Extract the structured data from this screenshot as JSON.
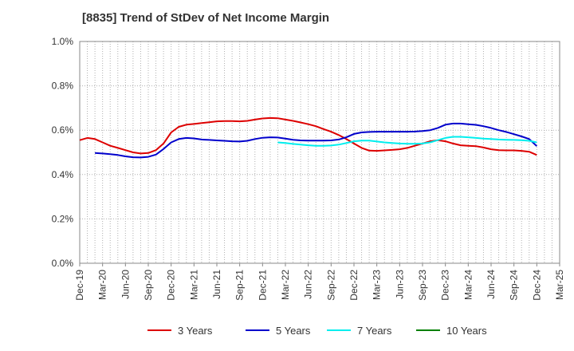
{
  "chart_data": {
    "type": "line",
    "title": "[8835]  Trend of StDev of Net Income Margin",
    "xlabel": "",
    "ylabel": "",
    "x_ticks": [
      "Dec-19",
      "Mar-20",
      "Jun-20",
      "Sep-20",
      "Dec-20",
      "Mar-21",
      "Jun-21",
      "Sep-21",
      "Dec-21",
      "Mar-22",
      "Jun-22",
      "Sep-22",
      "Dec-22",
      "Mar-23",
      "Jun-23",
      "Sep-23",
      "Dec-23",
      "Mar-24",
      "Jun-24",
      "Sep-24",
      "Dec-24",
      "Mar-25"
    ],
    "y_ticks": [
      "0.0%",
      "0.2%",
      "0.4%",
      "0.6%",
      "0.8%",
      "1.0%"
    ],
    "ylim": [
      0.0,
      1.0
    ],
    "grid": true,
    "legend_position": "bottom",
    "series": [
      {
        "name": "3 Years",
        "color": "#dd0000",
        "points": [
          [
            "Dec-19",
            0.555
          ],
          [
            "Jan-20",
            0.565
          ],
          [
            "Feb-20",
            0.56
          ],
          [
            "Mar-20",
            0.545
          ],
          [
            "Apr-20",
            0.53
          ],
          [
            "May-20",
            0.52
          ],
          [
            "Jun-20",
            0.51
          ],
          [
            "Jul-20",
            0.5
          ],
          [
            "Aug-20",
            0.495
          ],
          [
            "Sep-20",
            0.497
          ],
          [
            "Oct-20",
            0.51
          ],
          [
            "Nov-20",
            0.54
          ],
          [
            "Dec-20",
            0.59
          ],
          [
            "Jan-21",
            0.615
          ],
          [
            "Feb-21",
            0.625
          ],
          [
            "Mar-21",
            0.628
          ],
          [
            "Apr-21",
            0.632
          ],
          [
            "May-21",
            0.636
          ],
          [
            "Jun-21",
            0.64
          ],
          [
            "Jul-21",
            0.641
          ],
          [
            "Aug-21",
            0.641
          ],
          [
            "Sep-21",
            0.64
          ],
          [
            "Oct-21",
            0.642
          ],
          [
            "Nov-21",
            0.648
          ],
          [
            "Dec-21",
            0.653
          ],
          [
            "Jan-22",
            0.655
          ],
          [
            "Feb-22",
            0.654
          ],
          [
            "Mar-22",
            0.648
          ],
          [
            "Apr-22",
            0.642
          ],
          [
            "May-22",
            0.635
          ],
          [
            "Jun-22",
            0.627
          ],
          [
            "Jul-22",
            0.618
          ],
          [
            "Aug-22",
            0.605
          ],
          [
            "Sep-22",
            0.593
          ],
          [
            "Oct-22",
            0.578
          ],
          [
            "Nov-22",
            0.56
          ],
          [
            "Dec-22",
            0.54
          ],
          [
            "Jan-23",
            0.52
          ],
          [
            "Feb-23",
            0.508
          ],
          [
            "Mar-23",
            0.507
          ],
          [
            "Apr-23",
            0.509
          ],
          [
            "May-23",
            0.511
          ],
          [
            "Jun-23",
            0.514
          ],
          [
            "Jul-23",
            0.52
          ],
          [
            "Aug-23",
            0.53
          ],
          [
            "Sep-23",
            0.54
          ],
          [
            "Oct-23",
            0.55
          ],
          [
            "Nov-23",
            0.555
          ],
          [
            "Dec-23",
            0.55
          ],
          [
            "Jan-24",
            0.54
          ],
          [
            "Feb-24",
            0.532
          ],
          [
            "Mar-24",
            0.53
          ],
          [
            "Apr-24",
            0.528
          ],
          [
            "May-24",
            0.522
          ],
          [
            "Jun-24",
            0.514
          ],
          [
            "Jul-24",
            0.51
          ],
          [
            "Aug-24",
            0.509
          ],
          [
            "Sep-24",
            0.509
          ],
          [
            "Oct-24",
            0.507
          ],
          [
            "Nov-24",
            0.503
          ],
          [
            "Dec-24",
            0.488
          ]
        ]
      },
      {
        "name": "5 Years",
        "color": "#0000cc",
        "points": [
          [
            "Feb-20",
            0.497
          ],
          [
            "Mar-20",
            0.495
          ],
          [
            "Apr-20",
            0.492
          ],
          [
            "May-20",
            0.488
          ],
          [
            "Jun-20",
            0.482
          ],
          [
            "Jul-20",
            0.478
          ],
          [
            "Aug-20",
            0.477
          ],
          [
            "Sep-20",
            0.48
          ],
          [
            "Oct-20",
            0.49
          ],
          [
            "Nov-20",
            0.515
          ],
          [
            "Dec-20",
            0.545
          ],
          [
            "Jan-21",
            0.56
          ],
          [
            "Feb-21",
            0.565
          ],
          [
            "Mar-21",
            0.563
          ],
          [
            "Apr-21",
            0.558
          ],
          [
            "May-21",
            0.556
          ],
          [
            "Jun-21",
            0.554
          ],
          [
            "Jul-21",
            0.552
          ],
          [
            "Aug-21",
            0.55
          ],
          [
            "Sep-21",
            0.549
          ],
          [
            "Oct-21",
            0.552
          ],
          [
            "Nov-21",
            0.56
          ],
          [
            "Dec-21",
            0.566
          ],
          [
            "Jan-22",
            0.568
          ],
          [
            "Feb-22",
            0.567
          ],
          [
            "Mar-22",
            0.562
          ],
          [
            "Apr-22",
            0.557
          ],
          [
            "May-22",
            0.554
          ],
          [
            "Jun-22",
            0.553
          ],
          [
            "Jul-22",
            0.553
          ],
          [
            "Aug-22",
            0.553
          ],
          [
            "Sep-22",
            0.554
          ],
          [
            "Oct-22",
            0.558
          ],
          [
            "Nov-22",
            0.568
          ],
          [
            "Dec-22",
            0.583
          ],
          [
            "Jan-23",
            0.59
          ],
          [
            "Feb-23",
            0.592
          ],
          [
            "Mar-23",
            0.593
          ],
          [
            "Apr-23",
            0.593
          ],
          [
            "May-23",
            0.593
          ],
          [
            "Jun-23",
            0.593
          ],
          [
            "Jul-23",
            0.593
          ],
          [
            "Aug-23",
            0.594
          ],
          [
            "Sep-23",
            0.596
          ],
          [
            "Oct-23",
            0.6
          ],
          [
            "Nov-23",
            0.61
          ],
          [
            "Dec-23",
            0.625
          ],
          [
            "Jan-24",
            0.63
          ],
          [
            "Feb-24",
            0.63
          ],
          [
            "Mar-24",
            0.627
          ],
          [
            "Apr-24",
            0.624
          ],
          [
            "May-24",
            0.618
          ],
          [
            "Jun-24",
            0.61
          ],
          [
            "Jul-24",
            0.6
          ],
          [
            "Aug-24",
            0.592
          ],
          [
            "Sep-24",
            0.582
          ],
          [
            "Oct-24",
            0.572
          ],
          [
            "Nov-24",
            0.56
          ],
          [
            "Dec-24",
            0.528
          ]
        ]
      },
      {
        "name": "7 Years",
        "color": "#00eeee",
        "points": [
          [
            "Feb-22",
            0.545
          ],
          [
            "Mar-22",
            0.542
          ],
          [
            "Apr-22",
            0.538
          ],
          [
            "May-22",
            0.535
          ],
          [
            "Jun-22",
            0.532
          ],
          [
            "Jul-22",
            0.53
          ],
          [
            "Aug-22",
            0.53
          ],
          [
            "Sep-22",
            0.531
          ],
          [
            "Oct-22",
            0.535
          ],
          [
            "Nov-22",
            0.542
          ],
          [
            "Dec-22",
            0.55
          ],
          [
            "Jan-23",
            0.553
          ],
          [
            "Feb-23",
            0.553
          ],
          [
            "Mar-23",
            0.549
          ],
          [
            "Apr-23",
            0.545
          ],
          [
            "May-23",
            0.542
          ],
          [
            "Jun-23",
            0.54
          ],
          [
            "Jul-23",
            0.539
          ],
          [
            "Aug-23",
            0.539
          ],
          [
            "Sep-23",
            0.54
          ],
          [
            "Oct-23",
            0.545
          ],
          [
            "Nov-23",
            0.555
          ],
          [
            "Dec-23",
            0.565
          ],
          [
            "Jan-24",
            0.57
          ],
          [
            "Feb-24",
            0.57
          ],
          [
            "Mar-24",
            0.568
          ],
          [
            "Apr-24",
            0.565
          ],
          [
            "May-24",
            0.562
          ],
          [
            "Jun-24",
            0.56
          ],
          [
            "Jul-24",
            0.558
          ],
          [
            "Aug-24",
            0.557
          ],
          [
            "Sep-24",
            0.556
          ],
          [
            "Oct-24",
            0.555
          ],
          [
            "Nov-24",
            0.552
          ],
          [
            "Dec-24",
            0.545
          ]
        ]
      },
      {
        "name": "10 Years",
        "color": "#008000",
        "points": []
      }
    ]
  }
}
